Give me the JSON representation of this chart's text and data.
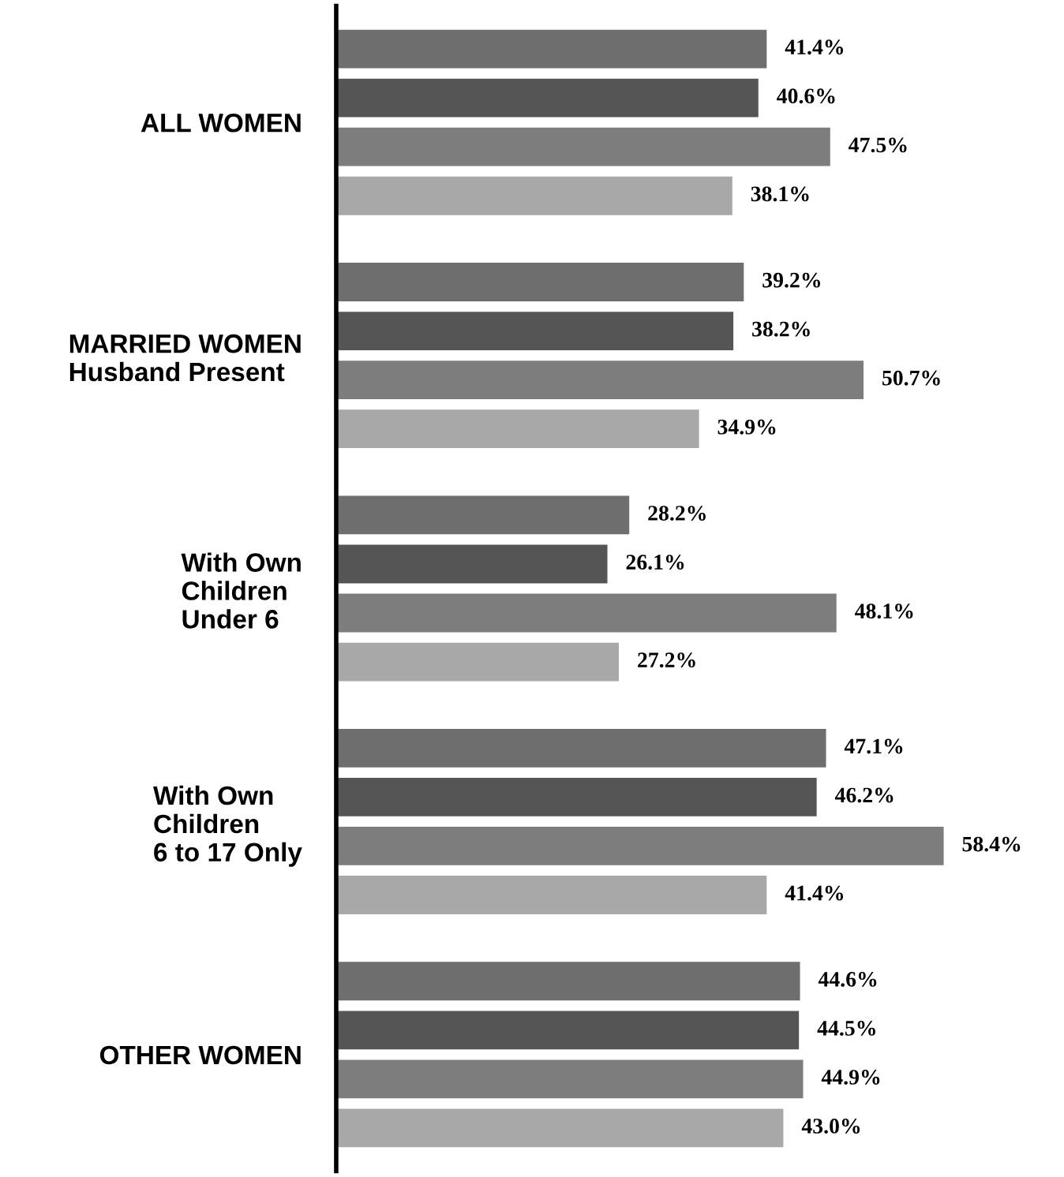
{
  "chart_data": {
    "type": "bar",
    "orientation": "horizontal",
    "categories": [
      "ALL WOMEN",
      "MARRIED WOMEN\nHusband Present",
      "With Own\nChildren\nUnder 6",
      "With Own\nChildren\n6 to 17 Only",
      "OTHER WOMEN"
    ],
    "series": [
      {
        "color": "#6e6e6e",
        "values": [
          41.4,
          39.2,
          28.2,
          47.1,
          44.6
        ],
        "value_labels": [
          "41.4%",
          "39.2%",
          "28.2%",
          "47.1%",
          "44.6%"
        ]
      },
      {
        "color": "#555555",
        "values": [
          40.6,
          38.2,
          26.1,
          46.2,
          44.5
        ],
        "value_labels": [
          "40.6%",
          "38.2%",
          "26.1%",
          "46.2%",
          "44.5%"
        ]
      },
      {
        "color": "#7d7d7d",
        "values": [
          47.5,
          50.7,
          48.1,
          58.4,
          44.9
        ],
        "value_labels": [
          "47.5%",
          "50.7%",
          "48.1%",
          "58.4%",
          "44.9%"
        ]
      },
      {
        "color": "#a8a8a8",
        "values": [
          38.1,
          34.9,
          27.2,
          41.4,
          43.0
        ],
        "value_labels": [
          "38.1%",
          "34.9%",
          "27.2%",
          "41.4%",
          "43.0%"
        ]
      }
    ],
    "tick_labels": "y",
    "grid": false,
    "legend": false
  }
}
